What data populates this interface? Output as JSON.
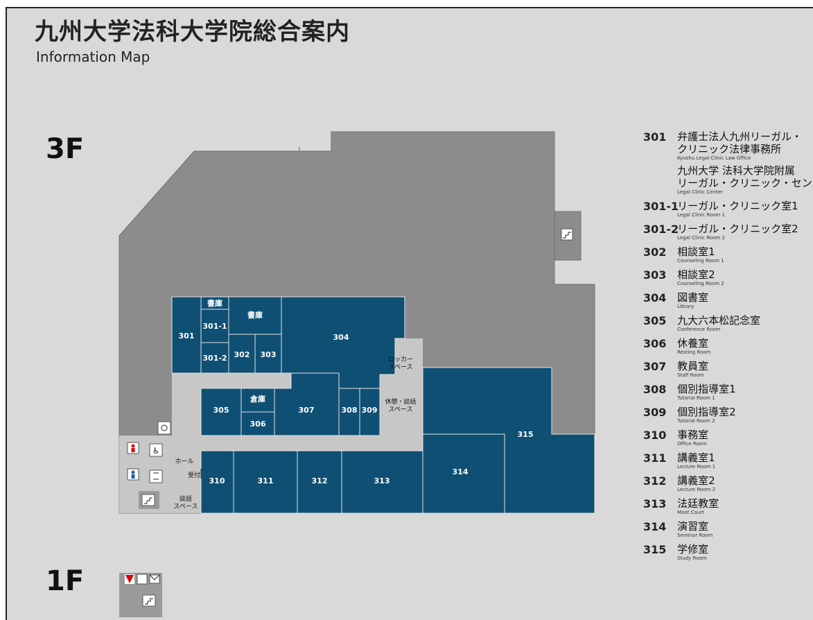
{
  "header": {
    "title": "九州大学法科大学院総合案内",
    "subtitle": "Information Map"
  },
  "floors": {
    "third": "3F",
    "first": "1F"
  },
  "colors": {
    "background": "#d9d9d9",
    "building": "#8c8c8c",
    "room": "#0f4f73",
    "corridor": "#c7c7c7",
    "text": "#222222"
  },
  "rooms": {
    "r301": "301",
    "r301_1": "301-1",
    "r301_2": "301-2",
    "r302": "302",
    "r303": "303",
    "r304": "304",
    "r305": "305",
    "r306": "306",
    "r307": "307",
    "r308": "308",
    "r309": "309",
    "r310": "310",
    "r311": "311",
    "r312": "312",
    "r313": "313",
    "r314": "314",
    "r315": "315",
    "shoko_small": "書庫",
    "shoko_large": "書庫",
    "soko": "倉庫"
  },
  "areas": {
    "locker_1": "ロッカー",
    "locker_2": "スペース",
    "lounge_1": "休憩・談話",
    "lounge_2": "スペース",
    "hall": "ホール",
    "reception": "受付",
    "talk_1": "談話",
    "talk_2": "スペース"
  },
  "icons": {
    "stairs": "stairs-icon",
    "restroom_female": "female-restroom-icon",
    "restroom_male": "male-restroom-icon",
    "wheelchair": "wheelchair-icon",
    "elevator": "elevator-icon",
    "water": "water-fountain-icon",
    "mail": "mail-icon",
    "fire_extinguisher": "fire-extinguisher-icon"
  },
  "legend": [
    {
      "num": "301",
      "ja": "弁護士法人九州リーガル・",
      "ja2": "クリニック法律事務所",
      "en": "Kyushu Legal Clinic Law Office",
      "ja3": "九州大学 法科大学院附属",
      "ja4": "リーガル・クリニック・センター",
      "en2": "Legal Clinic Center"
    },
    {
      "num": "301-1",
      "ja": "リーガル・クリニック室1",
      "en": "Legal Clinic Room 1"
    },
    {
      "num": "301-2",
      "ja": "リーガル・クリニック室2",
      "en": "Legal Clinic Room 2"
    },
    {
      "num": "302",
      "ja": "相談室1",
      "en": "Counseling Room 1"
    },
    {
      "num": "303",
      "ja": "相談室2",
      "en": "Counseling Room 2"
    },
    {
      "num": "304",
      "ja": "図書室",
      "en": "Library"
    },
    {
      "num": "305",
      "ja": "九大六本松記念室",
      "en": "Conference Room"
    },
    {
      "num": "306",
      "ja": "休養室",
      "en": "Resting Room"
    },
    {
      "num": "307",
      "ja": "教員室",
      "en": "Staff Room"
    },
    {
      "num": "308",
      "ja": "個別指導室1",
      "en": "Tutorial Room 1"
    },
    {
      "num": "309",
      "ja": "個別指導室2",
      "en": "Tutorial Room 2"
    },
    {
      "num": "310",
      "ja": "事務室",
      "en": "Office Room"
    },
    {
      "num": "311",
      "ja": "講義室1",
      "en": "Lecture Room 1"
    },
    {
      "num": "312",
      "ja": "講義室2",
      "en": "Lecture Room 2"
    },
    {
      "num": "313",
      "ja": "法廷教室",
      "en": "Moot Court"
    },
    {
      "num": "314",
      "ja": "演習室",
      "en": "Seminar Room"
    },
    {
      "num": "315",
      "ja": "学修室",
      "en": "Study Room"
    }
  ]
}
